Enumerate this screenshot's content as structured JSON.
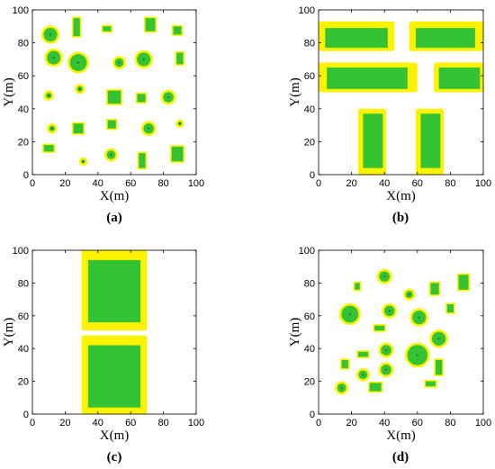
{
  "colors": {
    "obstacle": "#33c333",
    "buffer": "#fff200",
    "center": "#1f3f7f",
    "frame": "#000000"
  },
  "chart_data": [
    {
      "panel": "a",
      "caption": "(a)",
      "type": "scatter",
      "xlabel": "X(m)",
      "ylabel": "Y(m)",
      "xlim": [
        0,
        100
      ],
      "ylim": [
        0,
        100
      ],
      "xticks": [
        0,
        20,
        40,
        60,
        80,
        100
      ],
      "yticks": [
        0,
        20,
        40,
        60,
        80,
        100
      ],
      "circles": [
        {
          "x": 11,
          "y": 85,
          "r": 4.5
        },
        {
          "x": 13,
          "y": 71,
          "r": 4.5
        },
        {
          "x": 28,
          "y": 68,
          "r": 5.5
        },
        {
          "x": 53,
          "y": 68,
          "r": 3.0
        },
        {
          "x": 68,
          "y": 70,
          "r": 4.5
        },
        {
          "x": 29,
          "y": 52,
          "r": 2.0
        },
        {
          "x": 10,
          "y": 48,
          "r": 2.0
        },
        {
          "x": 83,
          "y": 47,
          "r": 3.5
        },
        {
          "x": 12,
          "y": 28,
          "r": 2.0
        },
        {
          "x": 71,
          "y": 28,
          "r": 3.5
        },
        {
          "x": 48,
          "y": 12,
          "r": 3.0
        },
        {
          "x": 31,
          "y": 8,
          "r": 1.5
        },
        {
          "x": 90,
          "y": 31,
          "r": 1.5
        }
      ],
      "rects": [
        {
          "x": 25,
          "y": 84,
          "w": 4,
          "h": 11
        },
        {
          "x": 43,
          "y": 87,
          "w": 5,
          "h": 3
        },
        {
          "x": 69,
          "y": 87,
          "w": 6,
          "h": 8
        },
        {
          "x": 86,
          "y": 85,
          "w": 5,
          "h": 5
        },
        {
          "x": 88,
          "y": 67,
          "w": 4,
          "h": 7
        },
        {
          "x": 46,
          "y": 43,
          "w": 8,
          "h": 8
        },
        {
          "x": 64,
          "y": 44,
          "w": 5,
          "h": 5
        },
        {
          "x": 25,
          "y": 25,
          "w": 6,
          "h": 6
        },
        {
          "x": 46,
          "y": 28,
          "w": 5,
          "h": 5
        },
        {
          "x": 7,
          "y": 14,
          "w": 6,
          "h": 4
        },
        {
          "x": 65,
          "y": 4,
          "w": 4,
          "h": 9
        },
        {
          "x": 85,
          "y": 8,
          "w": 7,
          "h": 9
        }
      ]
    },
    {
      "panel": "b",
      "caption": "(b)",
      "type": "scatter",
      "xlabel": "X(m)",
      "ylabel": "Y(m)",
      "xlim": [
        0,
        100
      ],
      "ylim": [
        0,
        100
      ],
      "xticks": [
        0,
        20,
        40,
        60,
        80,
        100
      ],
      "yticks": [
        0,
        20,
        40,
        60,
        80,
        100
      ],
      "circles": [],
      "rects": [
        {
          "x": 0,
          "y": 75,
          "w": 46,
          "h": 18,
          "inner": [
            4,
            77,
            38,
            12
          ]
        },
        {
          "x": 55,
          "y": 75,
          "w": 45,
          "h": 18,
          "inner": [
            59,
            77,
            36,
            12
          ]
        },
        {
          "x": 0,
          "y": 50,
          "w": 60,
          "h": 18,
          "inner": [
            5,
            52,
            49,
            13
          ]
        },
        {
          "x": 70,
          "y": 50,
          "w": 30,
          "h": 18,
          "inner": [
            73,
            52,
            25,
            13
          ]
        },
        {
          "x": 24,
          "y": 0,
          "w": 17,
          "h": 40,
          "inner": [
            27,
            4,
            12,
            33
          ]
        },
        {
          "x": 59,
          "y": 0,
          "w": 17,
          "h": 40,
          "inner": [
            62,
            4,
            12,
            33
          ]
        }
      ]
    },
    {
      "panel": "c",
      "caption": "(c)",
      "type": "scatter",
      "xlabel": "X(m)",
      "ylabel": "Y(m)",
      "xlim": [
        0,
        100
      ],
      "ylim": [
        0,
        100
      ],
      "xticks": [
        0,
        20,
        40,
        60,
        80,
        100
      ],
      "yticks": [
        0,
        20,
        40,
        60,
        80,
        100
      ],
      "circles": [],
      "rects": [
        {
          "x": 30,
          "y": 51,
          "w": 40,
          "h": 49,
          "inner": [
            34,
            56,
            32,
            38
          ]
        },
        {
          "x": 30,
          "y": 0,
          "w": 40,
          "h": 48,
          "inner": [
            34,
            4,
            32,
            38
          ]
        }
      ]
    },
    {
      "panel": "d",
      "caption": "(d)",
      "type": "scatter",
      "xlabel": "X(m)",
      "ylabel": "Y(m)",
      "xlim": [
        0,
        100
      ],
      "ylim": [
        0,
        100
      ],
      "xticks": [
        0,
        20,
        40,
        60,
        80,
        100
      ],
      "yticks": [
        0,
        20,
        40,
        60,
        80,
        100
      ],
      "circles": [
        {
          "x": 40,
          "y": 84,
          "r": 3.5
        },
        {
          "x": 43,
          "y": 63,
          "r": 3.5
        },
        {
          "x": 19,
          "y": 61,
          "r": 5.5
        },
        {
          "x": 61,
          "y": 59,
          "r": 4.5
        },
        {
          "x": 73,
          "y": 46,
          "r": 4.5
        },
        {
          "x": 41,
          "y": 39,
          "r": 3.5
        },
        {
          "x": 60,
          "y": 36,
          "r": 6.5
        },
        {
          "x": 41,
          "y": 27,
          "r": 3.5
        },
        {
          "x": 27,
          "y": 24,
          "r": 3.0
        },
        {
          "x": 14,
          "y": 16,
          "r": 3.0
        },
        {
          "x": 55,
          "y": 73,
          "r": 2.5
        }
      ],
      "rects": [
        {
          "x": 22,
          "y": 76,
          "w": 3,
          "h": 4
        },
        {
          "x": 68,
          "y": 73,
          "w": 5,
          "h": 7
        },
        {
          "x": 85,
          "y": 76,
          "w": 6,
          "h": 9
        },
        {
          "x": 78,
          "y": 62,
          "w": 4,
          "h": 5
        },
        {
          "x": 34,
          "y": 51,
          "w": 6,
          "h": 3
        },
        {
          "x": 24,
          "y": 35,
          "w": 6,
          "h": 3
        },
        {
          "x": 14,
          "y": 28,
          "w": 4,
          "h": 5
        },
        {
          "x": 71,
          "y": 24,
          "w": 4,
          "h": 9
        },
        {
          "x": 31,
          "y": 14,
          "w": 7,
          "h": 5
        },
        {
          "x": 65,
          "y": 17,
          "w": 6,
          "h": 3
        }
      ]
    }
  ]
}
